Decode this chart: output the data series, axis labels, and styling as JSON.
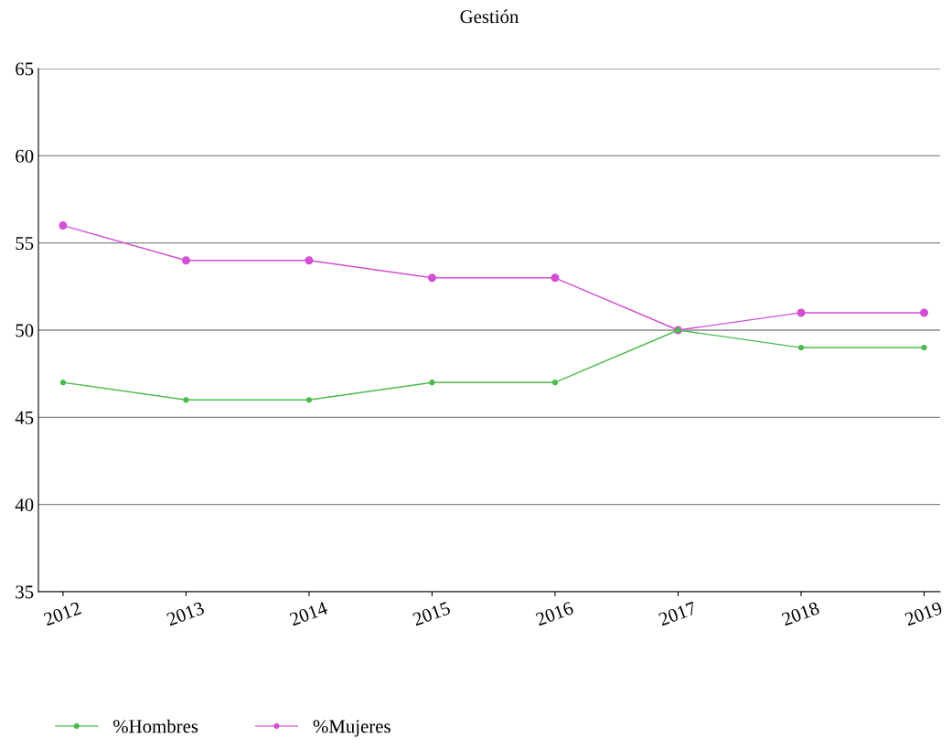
{
  "chart_data": {
    "type": "line",
    "title": "Gestión",
    "categories": [
      "2012",
      "2013",
      "2014",
      "2015",
      "2016",
      "2017",
      "2018",
      "2019"
    ],
    "series": [
      {
        "name": "%Hombres",
        "color": "#4cbb4c",
        "values": [
          47,
          46,
          46,
          47,
          47,
          50,
          49,
          49
        ]
      },
      {
        "name": "%Mujeres",
        "color": "#d24fd2",
        "values": [
          56,
          54,
          54,
          53,
          53,
          50,
          51,
          51
        ]
      }
    ],
    "ylim": [
      35,
      65
    ],
    "yticks": [
      35,
      40,
      45,
      50,
      55,
      60,
      65
    ],
    "grid": "y",
    "legend": "bottom left",
    "marker": "circle",
    "line_style": "solid"
  }
}
